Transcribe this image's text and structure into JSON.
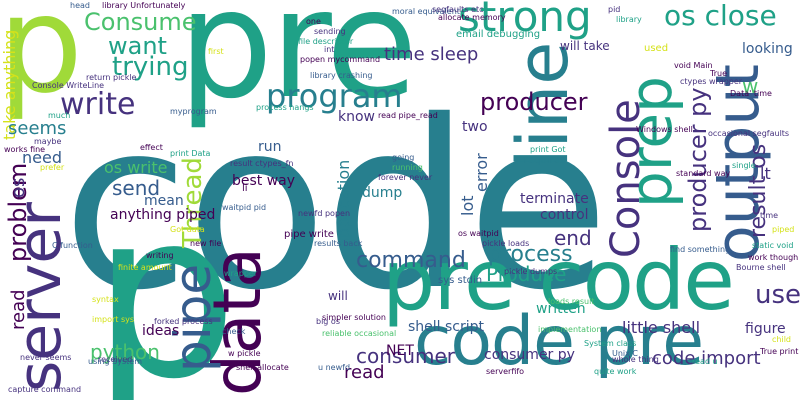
{
  "palette": {
    "purple": "#440154",
    "indigo": "#46327e",
    "blue": "#365c8d",
    "teal_blue": "#277f8e",
    "teal": "#1fa187",
    "green": "#4ac16d",
    "lime": "#a0da39",
    "yellow": "#d5e21a"
  },
  "words": [
    {
      "text": "code",
      "color": "teal_blue"
    },
    {
      "text": "pre",
      "color": "teal"
    },
    {
      "text": "p",
      "color": "teal"
    },
    {
      "text": "p",
      "color": "lime"
    },
    {
      "text": "pre code",
      "color": "teal"
    },
    {
      "text": "code pre",
      "color": "teal_blue"
    },
    {
      "text": "server",
      "color": "indigo"
    },
    {
      "text": "data",
      "color": "purple"
    },
    {
      "text": "pipe",
      "color": "blue"
    },
    {
      "text": "line",
      "color": "teal_blue"
    },
    {
      "text": "output",
      "color": "blue"
    },
    {
      "text": "prep",
      "color": "teal"
    },
    {
      "text": "strong",
      "color": "teal"
    },
    {
      "text": "os close",
      "color": "teal"
    },
    {
      "text": "program",
      "color": "teal_blue"
    },
    {
      "text": "Console",
      "color": "indigo"
    },
    {
      "text": "producer py",
      "color": "indigo"
    },
    {
      "text": "Consume",
      "color": "green"
    },
    {
      "text": "want",
      "color": "teal"
    },
    {
      "text": "trying",
      "color": "teal"
    },
    {
      "text": "write",
      "color": "indigo"
    },
    {
      "text": "producer",
      "color": "purple"
    },
    {
      "text": "time sleep",
      "color": "indigo"
    },
    {
      "text": "Thread",
      "color": "lime"
    },
    {
      "text": "send",
      "color": "blue"
    },
    {
      "text": "command",
      "color": "blue"
    },
    {
      "text": "process",
      "color": "teal_blue"
    },
    {
      "text": "Produce",
      "color": "teal"
    },
    {
      "text": "problem",
      "color": "purple"
    },
    {
      "text": "result os",
      "color": "indigo"
    },
    {
      "text": "consumer",
      "color": "indigo"
    },
    {
      "text": "code import",
      "color": "indigo"
    },
    {
      "text": "python",
      "color": "green"
    },
    {
      "text": "shell script",
      "color": "blue"
    },
    {
      "text": "little shell",
      "color": "indigo"
    },
    {
      "text": "written",
      "color": "teal"
    },
    {
      "text": "consumer py",
      "color": "indigo"
    },
    {
      "text": "read",
      "color": "purple"
    },
    {
      "text": "os",
      "color": "indigo"
    },
    {
      "text": "end",
      "color": "indigo"
    },
    {
      "text": "seems",
      "color": "teal_blue"
    },
    {
      "text": "need",
      "color": "blue"
    },
    {
      "text": "os write",
      "color": "green"
    },
    {
      "text": "best way",
      "color": "purple"
    },
    {
      "text": "run",
      "color": "blue"
    },
    {
      "text": "mean",
      "color": "blue"
    },
    {
      "text": "anything piped",
      "color": "purple"
    },
    {
      "text": "dump",
      "color": "teal_blue"
    },
    {
      "text": "terminate",
      "color": "indigo"
    },
    {
      "text": "control",
      "color": "indigo"
    },
    {
      "text": "application",
      "color": "teal_blue"
    },
    {
      "text": "error",
      "color": "blue"
    },
    {
      "text": "lot",
      "color": "blue"
    },
    {
      "text": "two",
      "color": "indigo"
    },
    {
      "text": "know",
      "color": "indigo"
    },
    {
      "text": "looking",
      "color": "blue"
    },
    {
      "text": "will take",
      "color": "indigo"
    },
    {
      "text": "ideas",
      "color": "purple"
    },
    {
      "text": "NET",
      "color": "purple"
    },
    {
      "text": "will",
      "color": "indigo"
    },
    {
      "text": "figure",
      "color": "indigo"
    },
    {
      "text": "use",
      "color": "indigo"
    },
    {
      "text": "lt",
      "color": "indigo"
    },
    {
      "text": "take anything",
      "color": "yellow"
    },
    {
      "text": "w",
      "color": "green"
    },
    {
      "text": "li",
      "color": "purple"
    },
    {
      "text": "sys stdin",
      "color": "blue"
    },
    {
      "text": "pipe write",
      "color": "purple"
    },
    {
      "text": "os waitpid",
      "color": "purple"
    }
  ],
  "small_words": [
    {
      "text": "read pipe_read",
      "color": "purple"
    },
    {
      "text": "email debugging",
      "color": "teal"
    },
    {
      "text": "allocate memory",
      "color": "purple"
    },
    {
      "text": "result ctypes_fn",
      "color": "indigo"
    },
    {
      "text": "print Data",
      "color": "teal"
    },
    {
      "text": "print Got",
      "color": "teal"
    },
    {
      "text": "requires",
      "color": "teal_blue"
    },
    {
      "text": "Windows shell",
      "color": "purple"
    },
    {
      "text": "Bourne shell",
      "color": "indigo"
    },
    {
      "text": "pickle loads",
      "color": "indigo"
    },
    {
      "text": "pickle dumps",
      "color": "indigo"
    },
    {
      "text": "results back",
      "color": "blue"
    },
    {
      "text": "forked process",
      "color": "indigo"
    },
    {
      "text": "Unix C",
      "color": "blue"
    },
    {
      "text": "True print",
      "color": "purple"
    },
    {
      "text": "capture command",
      "color": "indigo"
    },
    {
      "text": "received",
      "color": "indigo"
    },
    {
      "text": "using System",
      "color": "blue"
    },
    {
      "text": "newfd popen",
      "color": "indigo"
    },
    {
      "text": "big os",
      "color": "indigo"
    },
    {
      "text": "Console WriteLine",
      "color": "indigo"
    },
    {
      "text": "return pickle",
      "color": "indigo"
    },
    {
      "text": "library crashing",
      "color": "blue"
    },
    {
      "text": "popen mycommand",
      "color": "purple"
    },
    {
      "text": "file descriptor",
      "color": "teal"
    },
    {
      "text": "int",
      "color": "indigo"
    },
    {
      "text": "sending",
      "color": "indigo"
    },
    {
      "text": "one",
      "color": "purple"
    },
    {
      "text": "moral equivalent",
      "color": "blue"
    },
    {
      "text": "segfaults etc",
      "color": "indigo"
    },
    {
      "text": "pid",
      "color": "indigo"
    },
    {
      "text": "library",
      "color": "teal"
    },
    {
      "text": "void Main",
      "color": "purple"
    },
    {
      "text": "True",
      "color": "purple"
    },
    {
      "text": "ctypes wrapper",
      "color": "indigo"
    },
    {
      "text": "used",
      "color": "yellow"
    },
    {
      "text": "Data' time",
      "color": "purple"
    },
    {
      "text": "occasional segfaults",
      "color": "indigo"
    },
    {
      "text": "single",
      "color": "teal"
    },
    {
      "text": "standard way",
      "color": "purple"
    },
    {
      "text": "find something",
      "color": "blue"
    },
    {
      "text": "work though",
      "color": "purple"
    },
    {
      "text": "static void",
      "color": "teal"
    },
    {
      "text": "piped",
      "color": "yellow"
    },
    {
      "text": "time",
      "color": "indigo"
    },
    {
      "text": "child",
      "color": "yellow"
    },
    {
      "text": "read u",
      "color": "teal"
    },
    {
      "text": "whole thing",
      "color": "indigo"
    },
    {
      "text": "quite work",
      "color": "teal"
    },
    {
      "text": "System class",
      "color": "teal"
    },
    {
      "text": "implementation",
      "color": "green"
    },
    {
      "text": "loads result",
      "color": "green"
    },
    {
      "text": "going",
      "color": "blue"
    },
    {
      "text": "running",
      "color": "green"
    },
    {
      "text": "forever never",
      "color": "indigo"
    },
    {
      "text": "maybe",
      "color": "indigo"
    },
    {
      "text": "effect",
      "color": "purple"
    },
    {
      "text": "prefer",
      "color": "yellow"
    },
    {
      "text": "works fine",
      "color": "purple"
    },
    {
      "text": "much",
      "color": "teal"
    },
    {
      "text": "library Unfortunately",
      "color": "purple"
    },
    {
      "text": "head",
      "color": "blue"
    },
    {
      "text": "first",
      "color": "yellow"
    },
    {
      "text": "new file",
      "color": "purple"
    },
    {
      "text": "writing",
      "color": "purple"
    },
    {
      "text": "finite amount",
      "color": "yellow"
    },
    {
      "text": "wrapper",
      "color": "teal"
    },
    {
      "text": "check",
      "color": "blue"
    },
    {
      "text": "w pickle",
      "color": "purple"
    },
    {
      "text": "shell allocate",
      "color": "purple"
    },
    {
      "text": "u newfd",
      "color": "blue"
    },
    {
      "text": "serverfifo",
      "color": "purple"
    },
    {
      "text": "reliable occasional",
      "color": "green"
    },
    {
      "text": "simpler solution",
      "color": "purple"
    },
    {
      "text": "waitpid pid",
      "color": "blue"
    },
    {
      "text": "Got data",
      "color": "yellow"
    },
    {
      "text": "C function",
      "color": "blue"
    },
    {
      "text": "never seems",
      "color": "indigo"
    },
    {
      "text": "import sys",
      "color": "yellow"
    },
    {
      "text": "syntax",
      "color": "yellow"
    },
    {
      "text": "process hangs",
      "color": "teal"
    },
    {
      "text": "myprogram",
      "color": "blue"
    }
  ]
}
